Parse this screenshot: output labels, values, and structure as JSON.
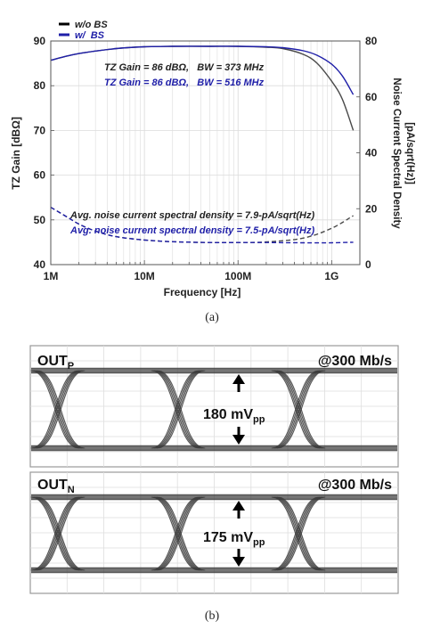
{
  "chart_data": [
    {
      "type": "line",
      "panel_label": "(a)",
      "xlabel": "Frequency [Hz]",
      "x_scale": "log",
      "xlim": [
        1000000,
        2000000000
      ],
      "x_ticks": [
        {
          "value": 1000000,
          "label": "1M"
        },
        {
          "value": 10000000,
          "label": "10M"
        },
        {
          "value": 100000000,
          "label": "100M"
        },
        {
          "value": 1000000000,
          "label": "1G"
        }
      ],
      "ylabel_left": "TZ Gain [dBΩ]",
      "ylim_left": [
        40,
        90
      ],
      "y_ticks_left": [
        "40",
        "50",
        "60",
        "70",
        "80",
        "90"
      ],
      "ylabel_right_line1": "Noise Current Spectral Density",
      "ylabel_right_line2": "[pA/sqrt(Hz)]",
      "ylim_right": [
        0,
        80
      ],
      "y_ticks_right": [
        "0",
        "20",
        "40",
        "60",
        "80"
      ],
      "legend": {
        "placement": "top-left",
        "entries": [
          {
            "label": "w/o BS",
            "color": "#000000"
          },
          {
            "label": "w/  BS",
            "color": "#1f1fa8"
          }
        ]
      },
      "annotations": {
        "gain_wo": "TZ Gain = 86 dBΩ,   BW = 373 MHz",
        "gain_w": "TZ Gain = 86 dBΩ,   BW = 516 MHz",
        "noise_wo": "Avg. noise current spectral density = 7.9-pA/sqrt(Hz)",
        "noise_w": "Avg. noise current spectral density = 7.5-pA/sqrt(Hz)"
      },
      "series": [
        {
          "name": "w/o BS",
          "axis": "left",
          "style": "solid",
          "color": "#4a4a4a",
          "x": [
            1000000,
            2000000,
            5000000,
            10000000,
            20000000,
            50000000,
            100000000,
            200000000,
            300000000,
            500000000,
            700000000,
            1000000000,
            1300000000,
            1700000000
          ],
          "y": [
            85.7,
            87.2,
            88.3,
            88.7,
            88.8,
            88.8,
            88.8,
            88.6,
            88.3,
            87.0,
            85.0,
            81.0,
            77.0,
            70.0
          ]
        },
        {
          "name": "w/  BS",
          "axis": "left",
          "style": "solid",
          "color": "#1f1fa8",
          "x": [
            1000000,
            2000000,
            5000000,
            10000000,
            20000000,
            50000000,
            100000000,
            200000000,
            300000000,
            500000000,
            700000000,
            1000000000,
            1300000000,
            1700000000
          ],
          "y": [
            85.7,
            87.2,
            88.3,
            88.7,
            88.8,
            88.8,
            88.8,
            88.7,
            88.5,
            87.8,
            86.8,
            84.8,
            82.2,
            78.0
          ]
        },
        {
          "name": "w/o BS",
          "axis": "right",
          "style": "dashed",
          "color": "#4a4a4a",
          "x": [
            1000000,
            1500000,
            2000000,
            3000000,
            5000000,
            10000000,
            20000000,
            50000000,
            100000000,
            200000000,
            500000000,
            1000000000,
            1700000000
          ],
          "y": [
            20.5,
            17.0,
            14.5,
            12.0,
            10.0,
            8.8,
            8.2,
            7.9,
            7.9,
            8.1,
            9.5,
            13.0,
            17.5
          ]
        },
        {
          "name": "w/  BS",
          "axis": "right",
          "style": "dashed",
          "color": "#1f1fa8",
          "x": [
            1000000,
            1500000,
            2000000,
            3000000,
            5000000,
            10000000,
            20000000,
            50000000,
            100000000,
            200000000,
            500000000,
            1000000000,
            1700000000
          ],
          "y": [
            20.5,
            17.0,
            14.5,
            12.0,
            10.0,
            8.8,
            8.2,
            7.9,
            7.9,
            7.9,
            7.8,
            7.8,
            8.0
          ]
        }
      ]
    },
    {
      "type": "eye_diagram",
      "panel_label": "(b)",
      "panels": [
        {
          "signal": "OUT",
          "subscript": "P",
          "rate": "@300 Mb/s",
          "swing_value": "180 mV",
          "swing_subscript": "pp"
        },
        {
          "signal": "OUT",
          "subscript": "N",
          "rate": "@300 Mb/s",
          "swing_value": "175 mV",
          "swing_subscript": "pp"
        }
      ],
      "colors": {
        "trace": "#3c3c3c",
        "grid": "#d9d9d9",
        "background": "#ffffff"
      }
    }
  ]
}
